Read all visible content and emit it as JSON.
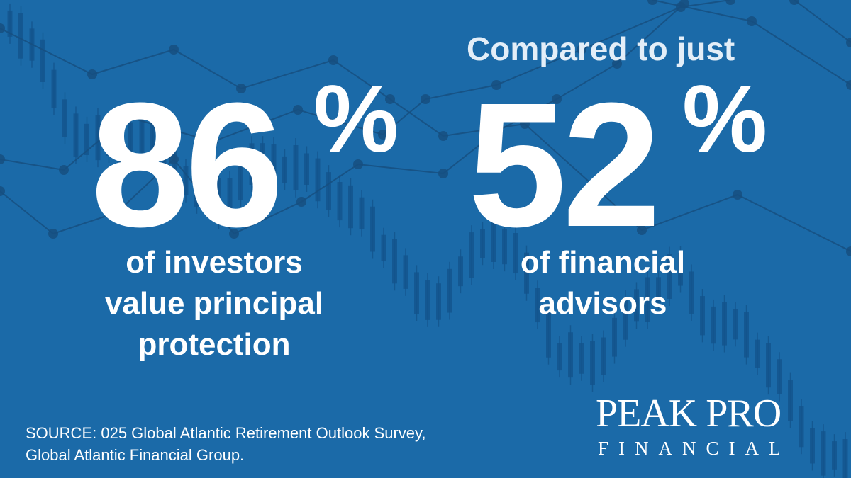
{
  "header": {
    "text": "Compared to just"
  },
  "left_stat": {
    "number": "86",
    "unit": "%",
    "lines": [
      "of investors",
      "value principal",
      "protection"
    ]
  },
  "right_stat": {
    "number": "52",
    "unit": "%",
    "lines": [
      "of financial",
      "advisors"
    ]
  },
  "source": {
    "lines": [
      "SOURCE: 025 Global Atlantic Retirement Outlook Survey,",
      "Global Atlantic Financial Group."
    ]
  },
  "logo": {
    "name": "PEAK PRO",
    "tagline": "FINANCIAL"
  }
}
